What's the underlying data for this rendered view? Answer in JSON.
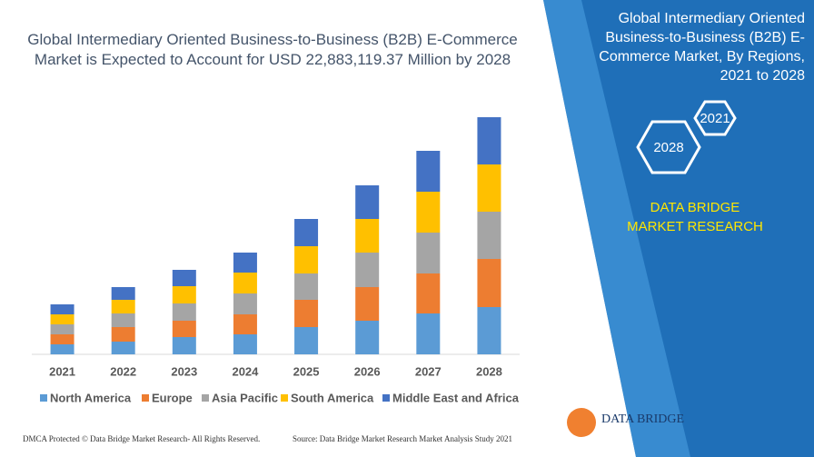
{
  "chart_data": {
    "type": "stacked-bar",
    "title": "Global Intermediary Oriented Business-to-Business (B2B) E-Commerce Market is Expected to Account for USD 22,883,119.37 Million by 2028",
    "categories": [
      "2021",
      "2022",
      "2023",
      "2024",
      "2025",
      "2026",
      "2027",
      "2028"
    ],
    "series": [
      {
        "name": "North America",
        "color": "#5b9bd5",
        "values": [
          11,
          14,
          19,
          22,
          30,
          37,
          45,
          52
        ]
      },
      {
        "name": "Europe",
        "color": "#ed7d31",
        "values": [
          11,
          16,
          18,
          22,
          30,
          37,
          44,
          53
        ]
      },
      {
        "name": "Asia Pacific",
        "color": "#a5a5a5",
        "values": [
          11,
          15,
          19,
          23,
          29,
          38,
          45,
          52
        ]
      },
      {
        "name": "South America",
        "color": "#ffc000",
        "values": [
          11,
          15,
          19,
          23,
          30,
          37,
          45,
          52
        ]
      },
      {
        "name": "Middle East and Africa",
        "color": "#4472c4",
        "values": [
          11,
          14,
          18,
          22,
          30,
          37,
          45,
          52
        ]
      }
    ]
  },
  "panel": {
    "title": "Global Intermediary Oriented Business-to-Business (B2B) E-Commerce Market, By Regions, 2021 to 2028",
    "badges": [
      "2021",
      "2028"
    ],
    "brand": "DATA BRIDGE MARKET RESEARCH",
    "logo": "DATA BRIDGE"
  },
  "footer": {
    "copyright": "DMCA Protected © Data Bridge Market Research- All Rights Reserved.",
    "source": "Source: Data Bridge Market Research Market Analysis Study 2021"
  }
}
